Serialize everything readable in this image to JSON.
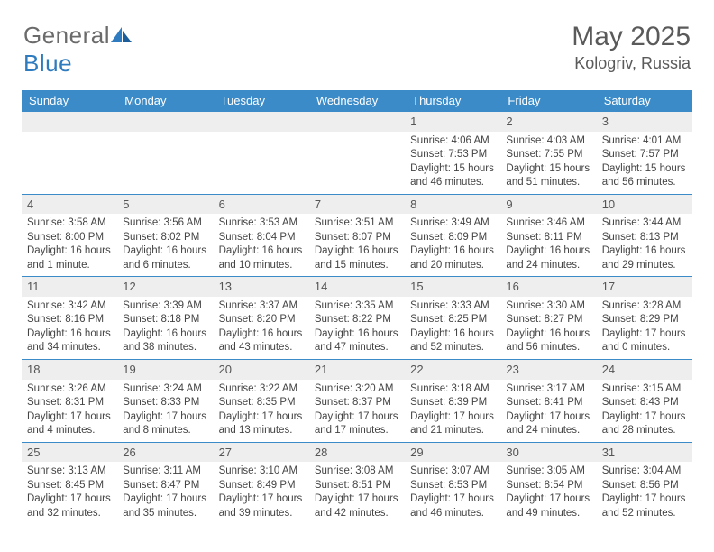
{
  "logo": {
    "word1": "General",
    "word2": "Blue"
  },
  "title": "May 2025",
  "location": "Kologriv, Russia",
  "colors": {
    "header_bg": "#3b8bc8",
    "header_fg": "#ffffff",
    "daynum_bg": "#eeeeee",
    "rule": "#3b8bc8",
    "text": "#444444",
    "title_color": "#5a5a5a",
    "logo_gray": "#6b6b6b",
    "logo_blue": "#2f7bbf"
  },
  "dow": [
    "Sunday",
    "Monday",
    "Tuesday",
    "Wednesday",
    "Thursday",
    "Friday",
    "Saturday"
  ],
  "weeks": [
    [
      {
        "n": "",
        "sr": "",
        "ss": "",
        "dl": ""
      },
      {
        "n": "",
        "sr": "",
        "ss": "",
        "dl": ""
      },
      {
        "n": "",
        "sr": "",
        "ss": "",
        "dl": ""
      },
      {
        "n": "",
        "sr": "",
        "ss": "",
        "dl": ""
      },
      {
        "n": "1",
        "sr": "Sunrise: 4:06 AM",
        "ss": "Sunset: 7:53 PM",
        "dl": "Daylight: 15 hours and 46 minutes."
      },
      {
        "n": "2",
        "sr": "Sunrise: 4:03 AM",
        "ss": "Sunset: 7:55 PM",
        "dl": "Daylight: 15 hours and 51 minutes."
      },
      {
        "n": "3",
        "sr": "Sunrise: 4:01 AM",
        "ss": "Sunset: 7:57 PM",
        "dl": "Daylight: 15 hours and 56 minutes."
      }
    ],
    [
      {
        "n": "4",
        "sr": "Sunrise: 3:58 AM",
        "ss": "Sunset: 8:00 PM",
        "dl": "Daylight: 16 hours and 1 minute."
      },
      {
        "n": "5",
        "sr": "Sunrise: 3:56 AM",
        "ss": "Sunset: 8:02 PM",
        "dl": "Daylight: 16 hours and 6 minutes."
      },
      {
        "n": "6",
        "sr": "Sunrise: 3:53 AM",
        "ss": "Sunset: 8:04 PM",
        "dl": "Daylight: 16 hours and 10 minutes."
      },
      {
        "n": "7",
        "sr": "Sunrise: 3:51 AM",
        "ss": "Sunset: 8:07 PM",
        "dl": "Daylight: 16 hours and 15 minutes."
      },
      {
        "n": "8",
        "sr": "Sunrise: 3:49 AM",
        "ss": "Sunset: 8:09 PM",
        "dl": "Daylight: 16 hours and 20 minutes."
      },
      {
        "n": "9",
        "sr": "Sunrise: 3:46 AM",
        "ss": "Sunset: 8:11 PM",
        "dl": "Daylight: 16 hours and 24 minutes."
      },
      {
        "n": "10",
        "sr": "Sunrise: 3:44 AM",
        "ss": "Sunset: 8:13 PM",
        "dl": "Daylight: 16 hours and 29 minutes."
      }
    ],
    [
      {
        "n": "11",
        "sr": "Sunrise: 3:42 AM",
        "ss": "Sunset: 8:16 PM",
        "dl": "Daylight: 16 hours and 34 minutes."
      },
      {
        "n": "12",
        "sr": "Sunrise: 3:39 AM",
        "ss": "Sunset: 8:18 PM",
        "dl": "Daylight: 16 hours and 38 minutes."
      },
      {
        "n": "13",
        "sr": "Sunrise: 3:37 AM",
        "ss": "Sunset: 8:20 PM",
        "dl": "Daylight: 16 hours and 43 minutes."
      },
      {
        "n": "14",
        "sr": "Sunrise: 3:35 AM",
        "ss": "Sunset: 8:22 PM",
        "dl": "Daylight: 16 hours and 47 minutes."
      },
      {
        "n": "15",
        "sr": "Sunrise: 3:33 AM",
        "ss": "Sunset: 8:25 PM",
        "dl": "Daylight: 16 hours and 52 minutes."
      },
      {
        "n": "16",
        "sr": "Sunrise: 3:30 AM",
        "ss": "Sunset: 8:27 PM",
        "dl": "Daylight: 16 hours and 56 minutes."
      },
      {
        "n": "17",
        "sr": "Sunrise: 3:28 AM",
        "ss": "Sunset: 8:29 PM",
        "dl": "Daylight: 17 hours and 0 minutes."
      }
    ],
    [
      {
        "n": "18",
        "sr": "Sunrise: 3:26 AM",
        "ss": "Sunset: 8:31 PM",
        "dl": "Daylight: 17 hours and 4 minutes."
      },
      {
        "n": "19",
        "sr": "Sunrise: 3:24 AM",
        "ss": "Sunset: 8:33 PM",
        "dl": "Daylight: 17 hours and 8 minutes."
      },
      {
        "n": "20",
        "sr": "Sunrise: 3:22 AM",
        "ss": "Sunset: 8:35 PM",
        "dl": "Daylight: 17 hours and 13 minutes."
      },
      {
        "n": "21",
        "sr": "Sunrise: 3:20 AM",
        "ss": "Sunset: 8:37 PM",
        "dl": "Daylight: 17 hours and 17 minutes."
      },
      {
        "n": "22",
        "sr": "Sunrise: 3:18 AM",
        "ss": "Sunset: 8:39 PM",
        "dl": "Daylight: 17 hours and 21 minutes."
      },
      {
        "n": "23",
        "sr": "Sunrise: 3:17 AM",
        "ss": "Sunset: 8:41 PM",
        "dl": "Daylight: 17 hours and 24 minutes."
      },
      {
        "n": "24",
        "sr": "Sunrise: 3:15 AM",
        "ss": "Sunset: 8:43 PM",
        "dl": "Daylight: 17 hours and 28 minutes."
      }
    ],
    [
      {
        "n": "25",
        "sr": "Sunrise: 3:13 AM",
        "ss": "Sunset: 8:45 PM",
        "dl": "Daylight: 17 hours and 32 minutes."
      },
      {
        "n": "26",
        "sr": "Sunrise: 3:11 AM",
        "ss": "Sunset: 8:47 PM",
        "dl": "Daylight: 17 hours and 35 minutes."
      },
      {
        "n": "27",
        "sr": "Sunrise: 3:10 AM",
        "ss": "Sunset: 8:49 PM",
        "dl": "Daylight: 17 hours and 39 minutes."
      },
      {
        "n": "28",
        "sr": "Sunrise: 3:08 AM",
        "ss": "Sunset: 8:51 PM",
        "dl": "Daylight: 17 hours and 42 minutes."
      },
      {
        "n": "29",
        "sr": "Sunrise: 3:07 AM",
        "ss": "Sunset: 8:53 PM",
        "dl": "Daylight: 17 hours and 46 minutes."
      },
      {
        "n": "30",
        "sr": "Sunrise: 3:05 AM",
        "ss": "Sunset: 8:54 PM",
        "dl": "Daylight: 17 hours and 49 minutes."
      },
      {
        "n": "31",
        "sr": "Sunrise: 3:04 AM",
        "ss": "Sunset: 8:56 PM",
        "dl": "Daylight: 17 hours and 52 minutes."
      }
    ]
  ]
}
